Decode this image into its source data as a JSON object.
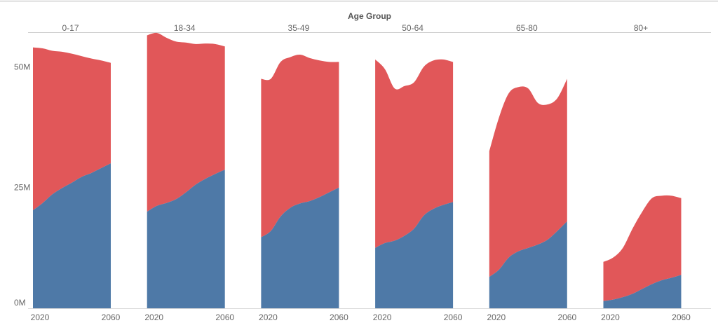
{
  "chart_data": {
    "type": "area",
    "stacked": true,
    "header_title": "Age Group",
    "x_tick_labels": [
      "2020",
      "2060"
    ],
    "x": [
      2020,
      2025,
      2030,
      2035,
      2040,
      2045,
      2050,
      2055,
      2060
    ],
    "ylim": [
      0,
      57000000
    ],
    "y_ticks": [
      {
        "value": 0,
        "label": "0M"
      },
      {
        "value": 25000000,
        "label": "25M"
      },
      {
        "value": 50000000,
        "label": "50M"
      }
    ],
    "colors": {
      "lower": "#4e79a7",
      "upper": "#e15759"
    },
    "panels": [
      {
        "label": "0-17",
        "lower": [
          20.3,
          21.8,
          23.6,
          24.9,
          26.0,
          27.2,
          28.0,
          29.0,
          30.0
        ],
        "total": [
          54.0,
          53.8,
          53.3,
          53.1,
          52.7,
          52.2,
          51.7,
          51.3,
          50.8
        ]
      },
      {
        "label": "18-34",
        "lower": [
          20.0,
          21.2,
          21.8,
          22.6,
          24.0,
          25.6,
          26.8,
          27.8,
          28.7
        ],
        "total": [
          56.5,
          57.0,
          56.0,
          55.2,
          55.0,
          54.7,
          54.8,
          54.7,
          54.2
        ]
      },
      {
        "label": "35-49",
        "lower": [
          14.7,
          16.0,
          19.0,
          20.8,
          21.7,
          22.2,
          23.0,
          24.0,
          25.0
        ],
        "total": [
          47.5,
          47.5,
          51.0,
          52.0,
          52.5,
          51.8,
          51.3,
          51.0,
          51.0
        ]
      },
      {
        "label": "50-64",
        "lower": [
          12.5,
          13.5,
          14.0,
          15.0,
          16.5,
          19.2,
          20.6,
          21.4,
          22.0
        ],
        "total": [
          51.5,
          49.5,
          45.5,
          46.0,
          46.8,
          50.0,
          51.3,
          51.5,
          51.0
        ]
      },
      {
        "label": "65-80",
        "lower": [
          6.5,
          8.0,
          10.5,
          11.8,
          12.5,
          13.2,
          14.2,
          16.0,
          18.0
        ],
        "total": [
          32.5,
          39.5,
          44.5,
          45.8,
          45.5,
          42.5,
          42.2,
          43.5,
          47.5
        ]
      },
      {
        "label": "80+",
        "lower": [
          1.5,
          1.8,
          2.3,
          3.0,
          4.0,
          5.0,
          5.8,
          6.3,
          6.9
        ],
        "total": [
          9.6,
          10.5,
          12.5,
          16.5,
          20.0,
          22.8,
          23.3,
          23.3,
          22.8
        ]
      }
    ]
  }
}
